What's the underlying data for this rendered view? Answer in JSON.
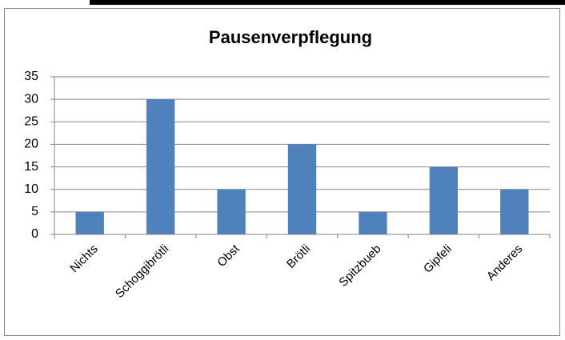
{
  "chart_data": {
    "type": "bar",
    "title": "Pausenverpflegung",
    "categories": [
      "Nichts",
      "Schoggibrötli",
      "Obst",
      "Brötli",
      "Spitzbueb",
      "Gipfeli",
      "Anderes"
    ],
    "values": [
      5,
      30,
      10,
      20,
      5,
      15,
      10
    ],
    "color": "#4f81bd",
    "ylim": [
      0,
      35
    ],
    "yticks": [
      0,
      5,
      10,
      15,
      20,
      25,
      30,
      35
    ],
    "grid": true
  }
}
